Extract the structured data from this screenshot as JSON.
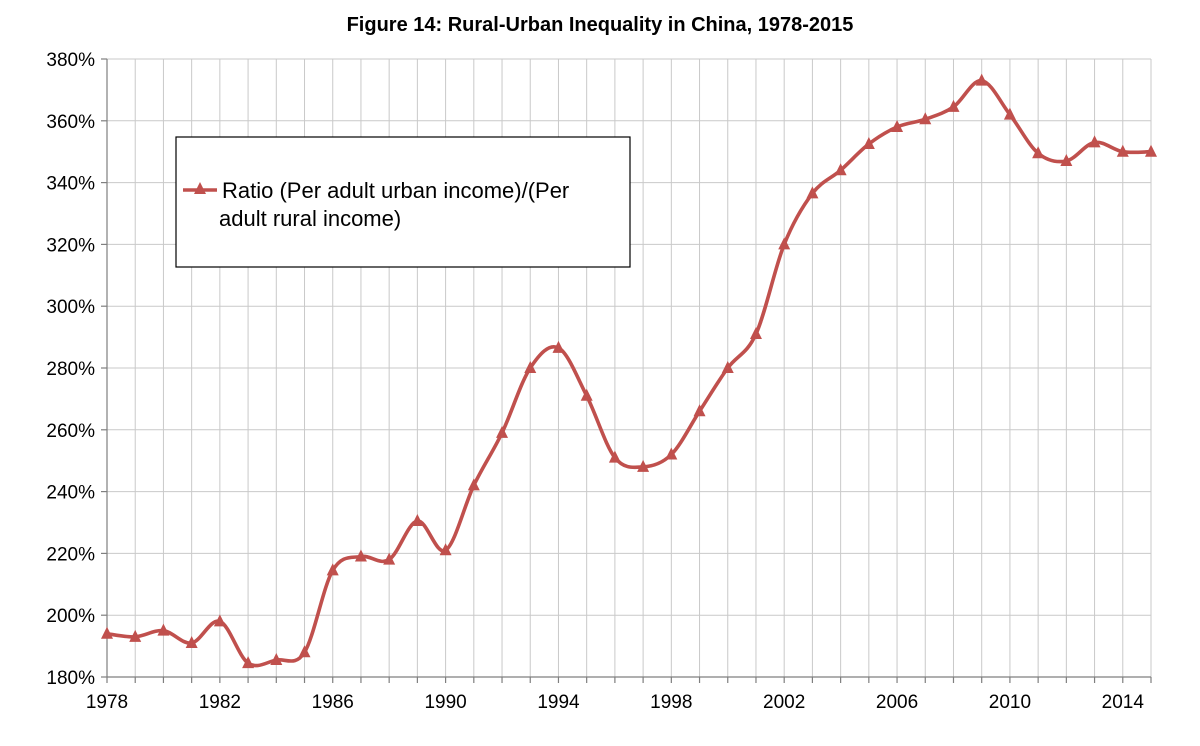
{
  "chart_data": {
    "type": "line",
    "title": "Figure 14: Rural-Urban Inequality in China, 1978-2015",
    "xlabel": "",
    "ylabel": "",
    "xlim": [
      1978,
      2015
    ],
    "ylim": [
      180,
      380
    ],
    "y_tick_values": [
      180,
      200,
      220,
      240,
      260,
      280,
      300,
      320,
      340,
      360,
      380
    ],
    "y_tick_labels": [
      "180%",
      "200%",
      "220%",
      "240%",
      "260%",
      "280%",
      "300%",
      "320%",
      "340%",
      "360%",
      "380%"
    ],
    "x_tick_values": [
      1978,
      1982,
      1986,
      1990,
      1994,
      1998,
      2002,
      2006,
      2010,
      2014
    ],
    "x_tick_labels": [
      "1978",
      "1982",
      "1986",
      "1990",
      "1994",
      "1998",
      "2002",
      "2006",
      "2010",
      "2014"
    ],
    "grid": true,
    "legend_position": "upper-left",
    "legend_lines": [
      "Ratio (Per adult urban income)/(Per",
      "adult rural income)"
    ],
    "series": [
      {
        "name": "Ratio (Per adult urban income)/(Per adult rural income)",
        "color": "#c0504d",
        "marker": "triangle",
        "x": [
          1978,
          1979,
          1980,
          1981,
          1982,
          1983,
          1984,
          1985,
          1986,
          1987,
          1988,
          1989,
          1990,
          1991,
          1992,
          1993,
          1994,
          1995,
          1996,
          1997,
          1998,
          1999,
          2000,
          2001,
          2002,
          2003,
          2004,
          2005,
          2006,
          2007,
          2008,
          2009,
          2010,
          2011,
          2012,
          2013,
          2014,
          2015
        ],
        "values": [
          194,
          193,
          195,
          191,
          198,
          184.5,
          185.5,
          188,
          214.5,
          219,
          218,
          230.5,
          221,
          242,
          259,
          280,
          286.5,
          271,
          251,
          248,
          252,
          266,
          280,
          291,
          320,
          336.5,
          344,
          352.5,
          358,
          360.5,
          364.5,
          373,
          362,
          349.5,
          347,
          353,
          350,
          350
        ]
      }
    ]
  }
}
